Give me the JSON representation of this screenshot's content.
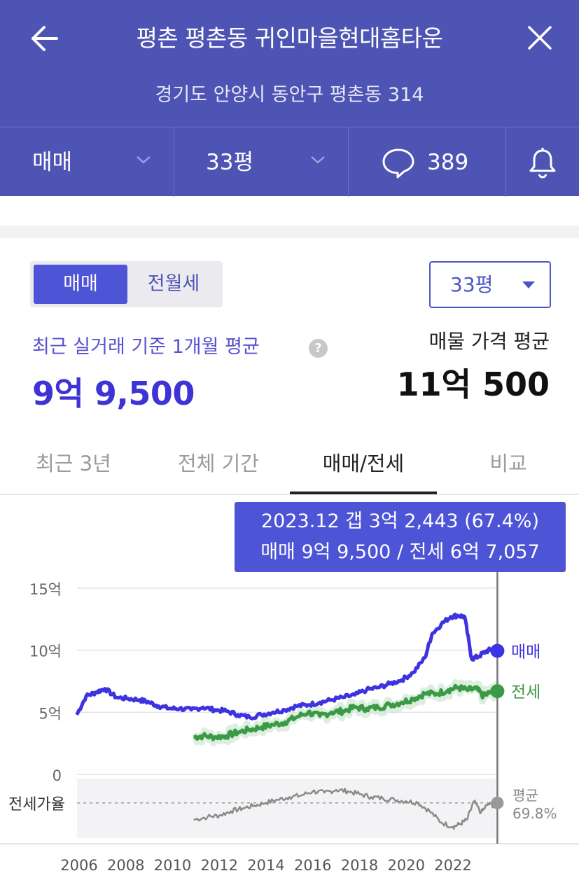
{
  "header": {
    "title": "평촌 평촌동 귀인마을현대홈타운",
    "address": "경기도 안양시 동안구 평촌동 314",
    "back_icon": "arrow-left-icon",
    "close_icon": "close-icon"
  },
  "toolbar": {
    "trade_type": "매매",
    "size": "33평",
    "comment_count": "389",
    "comment_icon": "speech-bubble-icon",
    "alarm_icon": "bell-icon"
  },
  "summary": {
    "seg_active": "매매",
    "seg_inactive": "전월세",
    "size_dropdown": "33평",
    "recent_label": "최근 실거래 기준 1개월 평균",
    "recent_value": "9억 9,500",
    "listing_label": "매물 가격 평균",
    "listing_value": "11억 500"
  },
  "tabs": [
    {
      "label": "최근 3년",
      "active": false
    },
    {
      "label": "전체 기간",
      "active": false
    },
    {
      "label": "매매/전세",
      "active": true
    },
    {
      "label": "비교",
      "active": false
    }
  ],
  "tooltip": {
    "line1": "2023.12  갭 3억 2,443 (67.4%)",
    "line2": "매매 9억 9,500 / 전세 6억 7,057"
  },
  "colors": {
    "header_bg": "#4d54b3",
    "accent": "#4d54d6",
    "sale": "#3d33e0",
    "jeonse": "#3a9a45",
    "ratio": "#8a8a8a"
  },
  "chart_data": {
    "type": "line",
    "x_ticks": [
      "2006",
      "2008",
      "2010",
      "2012",
      "2014",
      "2016",
      "2018",
      "2020",
      "2022"
    ],
    "y_ticks": [
      "15억",
      "10억",
      "5억",
      "0"
    ],
    "ylim": [
      0,
      15
    ],
    "unit": "억",
    "ratio_label": "전세가율",
    "series": [
      {
        "name": "매매",
        "x": [
          2005.9,
          2006.3,
          2006.7,
          2007.1,
          2007.6,
          2008.1,
          2008.6,
          2009.0,
          2009.4,
          2009.9,
          2010.3,
          2010.8,
          2011.3,
          2011.8,
          2012.3,
          2012.8,
          2013.3,
          2013.8,
          2014.3,
          2014.8,
          2015.3,
          2015.8,
          2016.3,
          2016.8,
          2017.3,
          2017.8,
          2018.3,
          2018.8,
          2019.3,
          2019.8,
          2020.3,
          2020.8,
          2021.1,
          2021.5,
          2021.9,
          2022.2,
          2022.5,
          2022.8,
          2023.1,
          2023.4,
          2023.7,
          2023.9
        ],
        "values": [
          4.8,
          6.3,
          6.6,
          6.9,
          6.2,
          6.1,
          6.0,
          5.8,
          5.5,
          5.3,
          5.3,
          5.2,
          5.4,
          5.2,
          5.1,
          4.8,
          4.6,
          4.8,
          5.0,
          5.2,
          5.5,
          5.6,
          5.8,
          6.0,
          6.2,
          6.4,
          6.8,
          7.0,
          7.3,
          7.6,
          8.2,
          9.4,
          11.3,
          12.1,
          12.7,
          12.8,
          12.7,
          9.3,
          9.5,
          9.9,
          10.1,
          9.95
        ],
        "end_label": "매매"
      },
      {
        "name": "전세",
        "x": [
          2010.9,
          2011.3,
          2011.8,
          2012.3,
          2012.8,
          2013.3,
          2013.8,
          2014.3,
          2014.8,
          2015.3,
          2015.8,
          2016.3,
          2016.8,
          2017.3,
          2017.8,
          2018.3,
          2018.8,
          2019.3,
          2019.8,
          2020.3,
          2020.8,
          2021.3,
          2021.8,
          2022.2,
          2022.6,
          2023.0,
          2023.3,
          2023.6,
          2023.9
        ],
        "values": [
          3.0,
          3.1,
          3.0,
          3.1,
          3.4,
          3.6,
          3.8,
          4.0,
          4.2,
          4.6,
          5.0,
          4.7,
          5.0,
          5.1,
          5.4,
          5.3,
          5.4,
          5.6,
          5.8,
          6.1,
          6.5,
          6.5,
          6.8,
          7.0,
          6.8,
          6.9,
          6.3,
          6.6,
          6.7
        ],
        "end_label": "전세"
      },
      {
        "name": "전세가율",
        "x": [
          2010.9,
          2011.5,
          2012.0,
          2012.5,
          2013.0,
          2013.5,
          2014.0,
          2014.5,
          2015.0,
          2015.5,
          2016.0,
          2016.5,
          2017.0,
          2017.5,
          2018.0,
          2018.5,
          2019.0,
          2019.5,
          2020.0,
          2020.5,
          2021.0,
          2021.5,
          2022.0,
          2022.3,
          2022.6,
          2022.9,
          2023.2,
          2023.5,
          2023.9
        ],
        "values": [
          58,
          60,
          61,
          64,
          66,
          68,
          70,
          72,
          74,
          75,
          78,
          77,
          79,
          78,
          76,
          74,
          73,
          72,
          71,
          70,
          64,
          56,
          53,
          55,
          58,
          71,
          63,
          69,
          67.4
        ],
        "average": 69.8,
        "average_label": "평균",
        "average_value": "69.8%"
      }
    ]
  }
}
